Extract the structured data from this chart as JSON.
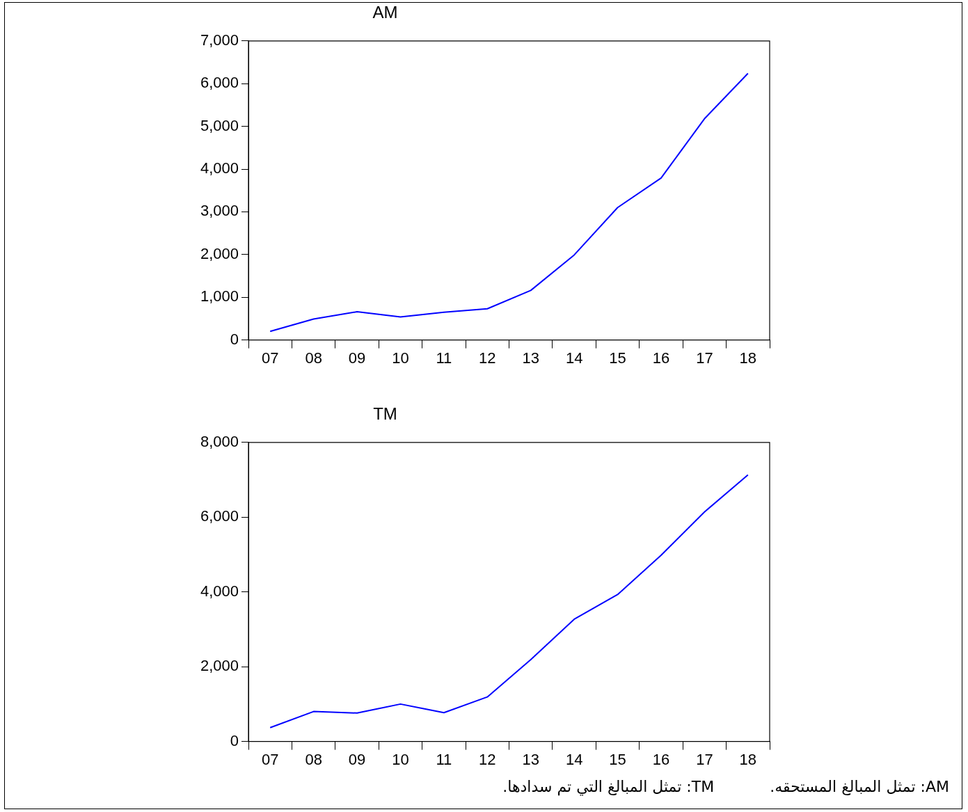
{
  "chart_data": [
    {
      "type": "line",
      "title": "AM",
      "categories": [
        "07",
        "08",
        "09",
        "10",
        "11",
        "12",
        "13",
        "14",
        "15",
        "16",
        "17",
        "18"
      ],
      "series": [
        {
          "color": "#0000ff",
          "values": [
            200,
            490,
            660,
            540,
            650,
            730,
            1160,
            1990,
            3100,
            3790,
            5180,
            6240
          ]
        }
      ],
      "ylim": [
        0,
        7000
      ],
      "yticks": [
        {
          "value": 0,
          "label": "0"
        },
        {
          "value": 1000,
          "label": "1,000"
        },
        {
          "value": 2000,
          "label": "2,000"
        },
        {
          "value": 3000,
          "label": "3,000"
        },
        {
          "value": 4000,
          "label": "4,000"
        },
        {
          "value": 5000,
          "label": "5,000"
        },
        {
          "value": 6000,
          "label": "6,000"
        },
        {
          "value": 7000,
          "label": "7,000"
        }
      ],
      "grid": false,
      "legend": false,
      "marker": "none",
      "line_style": "solid"
    },
    {
      "type": "line",
      "title": "TM",
      "categories": [
        "07",
        "08",
        "09",
        "10",
        "11",
        "12",
        "13",
        "14",
        "15",
        "16",
        "17",
        "18"
      ],
      "series": [
        {
          "color": "#0000ff",
          "values": [
            370,
            800,
            760,
            1000,
            770,
            1190,
            2190,
            3270,
            3930,
            4980,
            6140,
            7130
          ]
        }
      ],
      "ylim": [
        0,
        8000
      ],
      "yticks": [
        {
          "value": 0,
          "label": "0"
        },
        {
          "value": 2000,
          "label": "2,000"
        },
        {
          "value": 4000,
          "label": "4,000"
        },
        {
          "value": 6000,
          "label": "6,000"
        },
        {
          "value": 8000,
          "label": "8,000"
        }
      ],
      "grid": false,
      "legend": false,
      "marker": "none",
      "line_style": "solid",
      "annotations": [
        "AM: تمثل المبالغ المستحقه.",
        "TM: تمثل المبالغ التي تم سدادها."
      ]
    }
  ]
}
